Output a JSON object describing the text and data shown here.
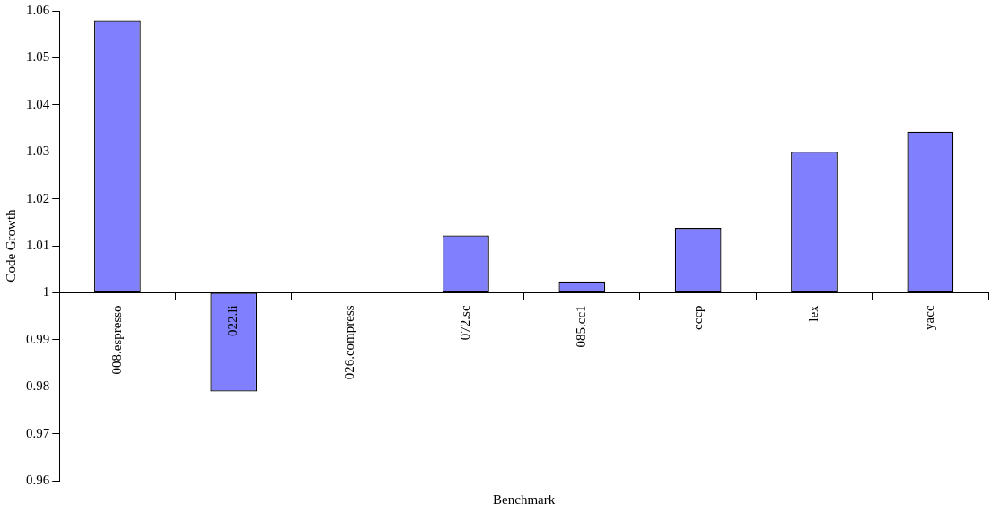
{
  "chart_data": {
    "type": "bar",
    "xlabel": "Benchmark",
    "ylabel": "Code Growth",
    "categories": [
      "008.espresso",
      "022.li",
      "026.compress",
      "072.sc",
      "085.cc1",
      "cccp",
      "lex",
      "yacc"
    ],
    "base": [
      1,
      1,
      null,
      1,
      1,
      1,
      1,
      1
    ],
    "values": [
      0.058,
      -0.021,
      null,
      0.0122,
      0.0024,
      0.0138,
      0.03,
      0.0343
    ],
    "color": "#8080ff",
    "ylim": [
      0.96,
      1.06
    ],
    "yticks": [
      0.96,
      0.97,
      0.98,
      0.99,
      1,
      1.01,
      1.02,
      1.03,
      1.04,
      1.05,
      1.06
    ],
    "grid": false,
    "legend": false
  }
}
